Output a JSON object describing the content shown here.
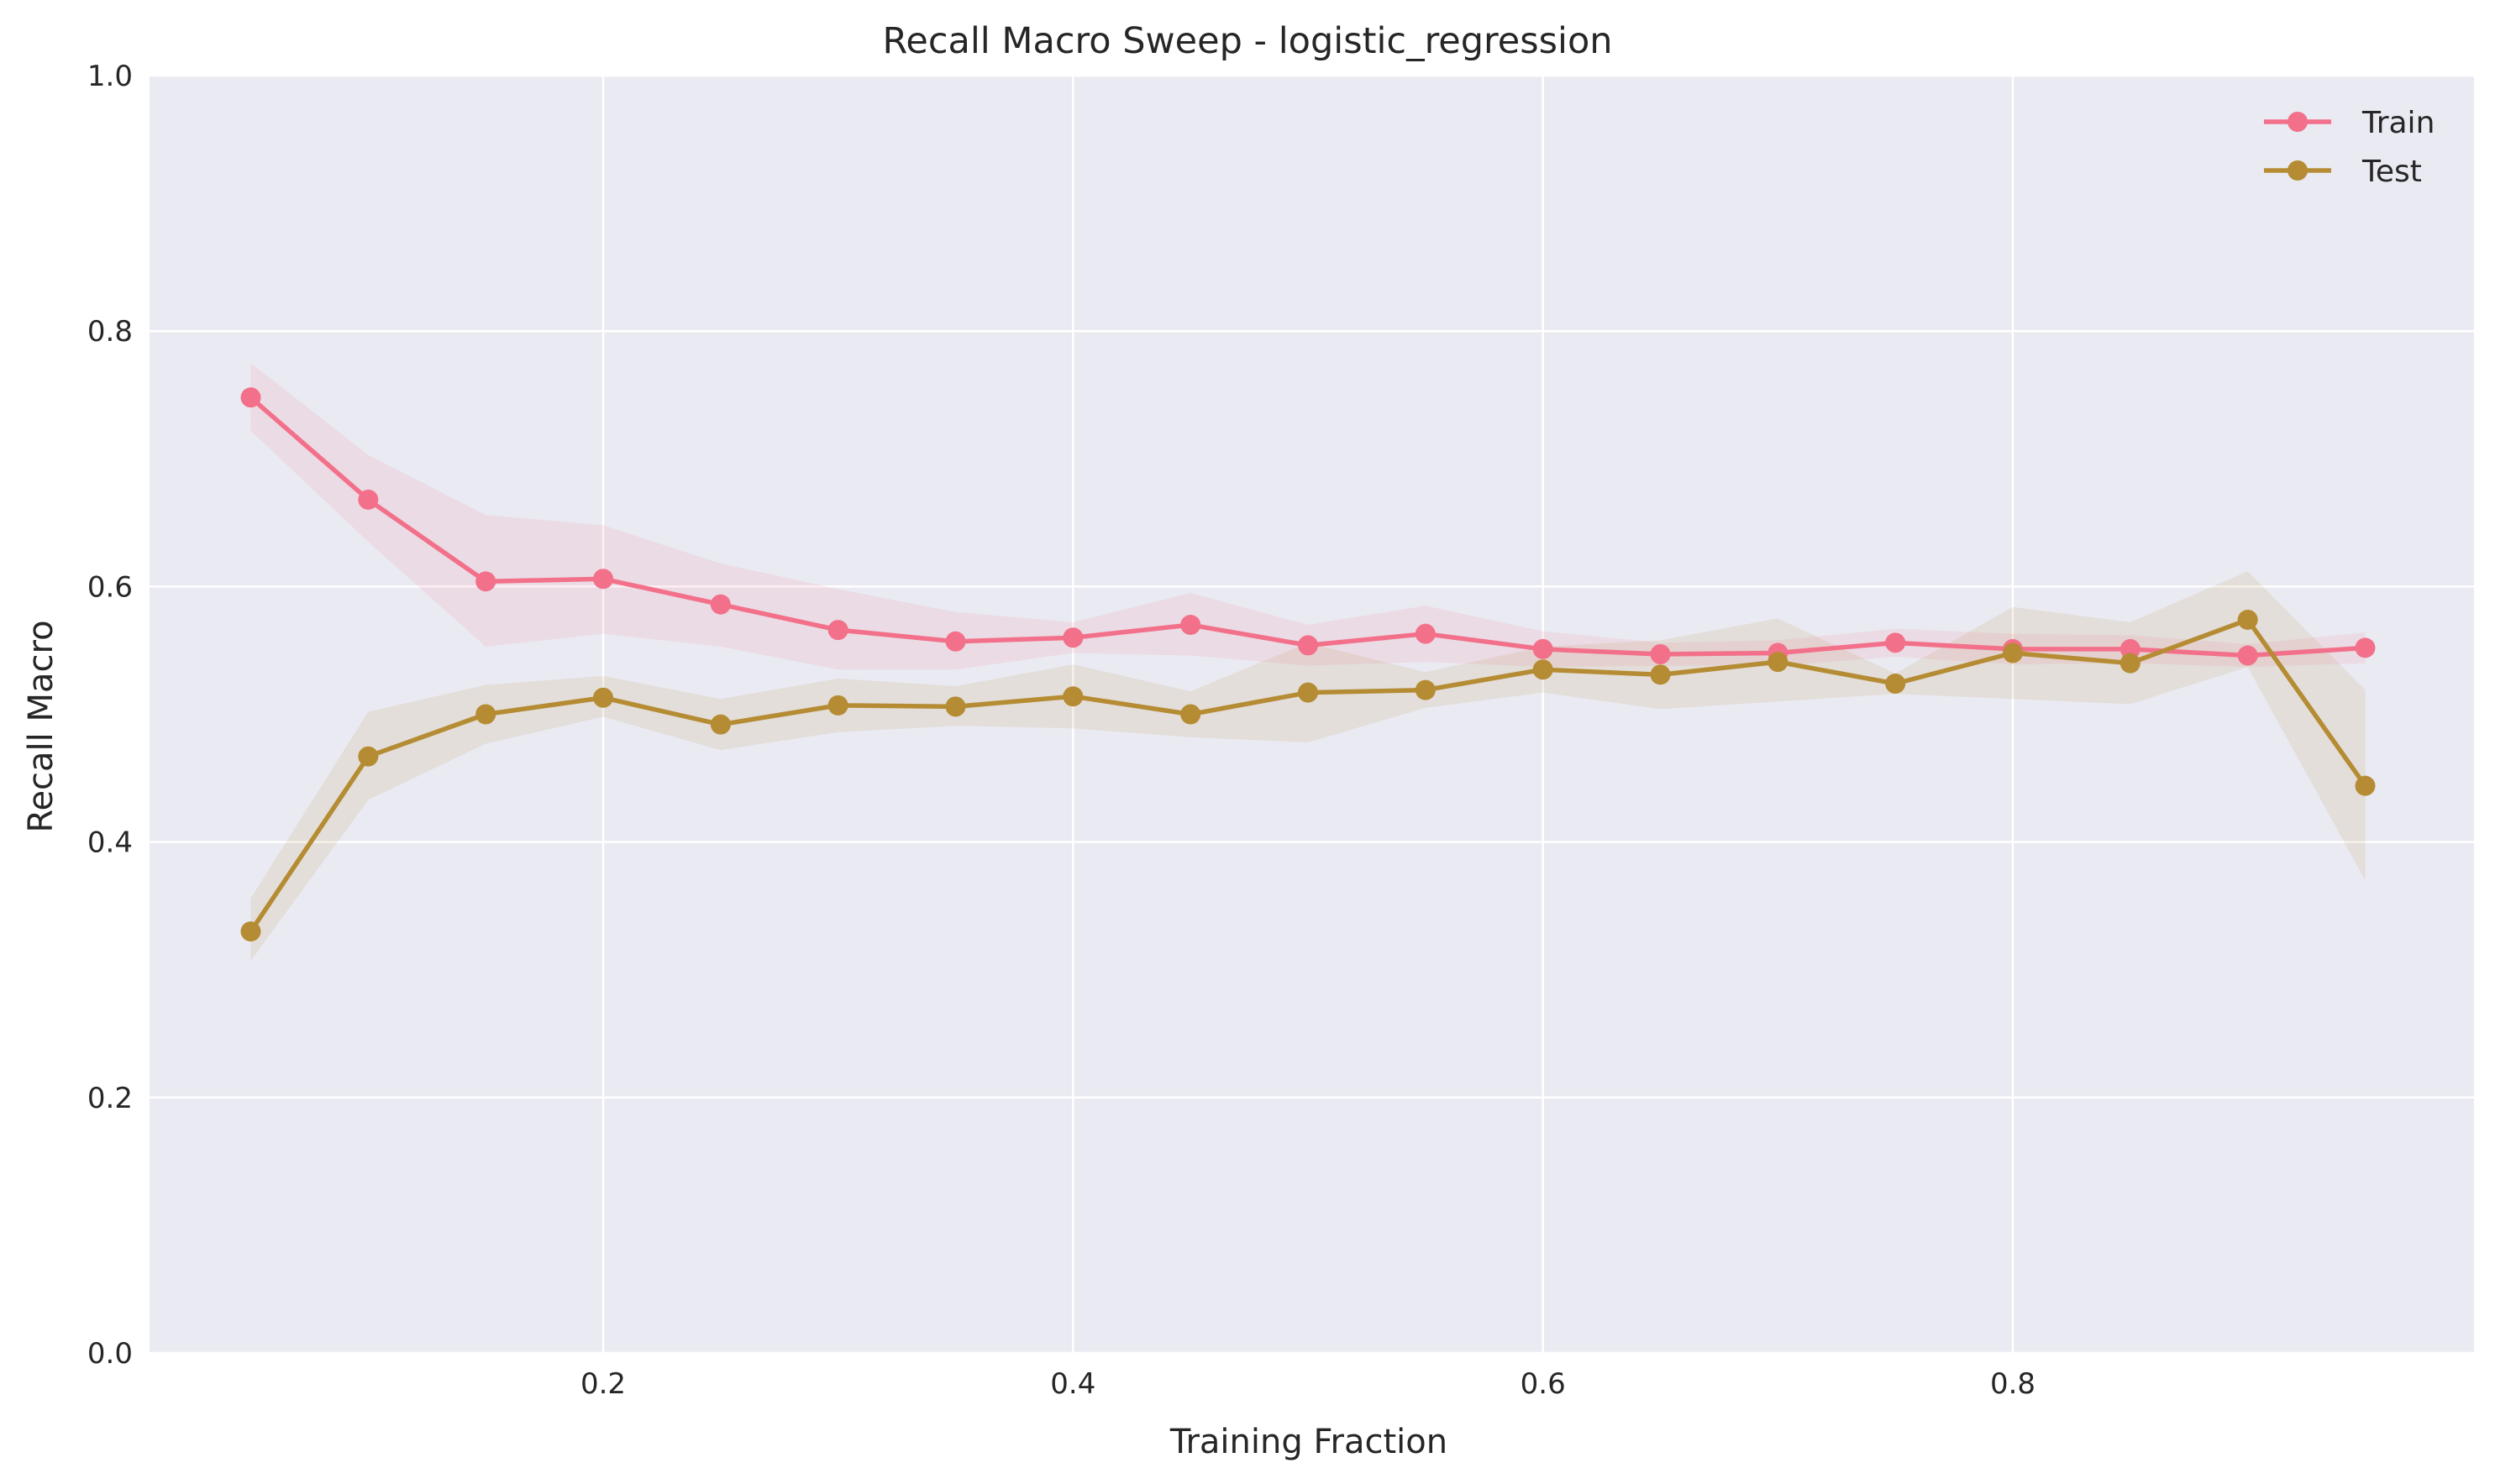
{
  "chart_data": {
    "type": "line",
    "title": "Recall Macro Sweep - logistic_regression",
    "xlabel": "Training Fraction",
    "ylabel": "Recall Macro",
    "xlim": [
      0.0,
      1.0
    ],
    "ylim": [
      0.0,
      1.0
    ],
    "x_ticks": [
      0.2,
      0.4,
      0.6,
      0.8
    ],
    "x_tick_labels": [
      "0.2",
      "0.4",
      "0.6",
      "0.8"
    ],
    "y_ticks": [
      0.0,
      0.2,
      0.4,
      0.6,
      0.8,
      1.0
    ],
    "y_tick_labels": [
      "0.0",
      "0.2",
      "0.4",
      "0.6",
      "0.8",
      "1.0"
    ],
    "grid": true,
    "legend_position": "top-right",
    "x": [
      0.05,
      0.1,
      0.15,
      0.2,
      0.25,
      0.3,
      0.35,
      0.4,
      0.45,
      0.5,
      0.55,
      0.6,
      0.65,
      0.7,
      0.75,
      0.8,
      0.85,
      0.9,
      0.95
    ],
    "series": [
      {
        "name": "Train",
        "color": "#f3708a",
        "values": [
          0.748,
          0.668,
          0.604,
          0.606,
          0.586,
          0.566,
          0.557,
          0.56,
          0.57,
          0.554,
          0.563,
          0.551,
          0.547,
          0.548,
          0.556,
          0.551,
          0.551,
          0.546,
          0.552
        ],
        "band_lower": [
          0.722,
          0.635,
          0.553,
          0.563,
          0.553,
          0.535,
          0.535,
          0.548,
          0.546,
          0.538,
          0.541,
          0.537,
          0.538,
          0.538,
          0.545,
          0.539,
          0.54,
          0.537,
          0.54
        ],
        "band_upper": [
          0.775,
          0.703,
          0.656,
          0.648,
          0.618,
          0.598,
          0.58,
          0.572,
          0.595,
          0.57,
          0.585,
          0.565,
          0.556,
          0.558,
          0.567,
          0.563,
          0.562,
          0.555,
          0.564
        ]
      },
      {
        "name": "Test",
        "color": "#b58c33",
        "values": [
          0.33,
          0.467,
          0.5,
          0.513,
          0.492,
          0.507,
          0.506,
          0.514,
          0.5,
          0.517,
          0.519,
          0.535,
          0.531,
          0.541,
          0.524,
          0.548,
          0.54,
          0.574,
          0.444
        ],
        "band_lower": [
          0.307,
          0.433,
          0.477,
          0.498,
          0.472,
          0.486,
          0.491,
          0.489,
          0.482,
          0.478,
          0.505,
          0.517,
          0.504,
          0.51,
          0.516,
          0.512,
          0.508,
          0.537,
          0.37
        ],
        "band_upper": [
          0.356,
          0.502,
          0.523,
          0.53,
          0.512,
          0.528,
          0.522,
          0.539,
          0.518,
          0.556,
          0.533,
          0.553,
          0.558,
          0.575,
          0.532,
          0.584,
          0.572,
          0.612,
          0.519
        ]
      }
    ]
  }
}
